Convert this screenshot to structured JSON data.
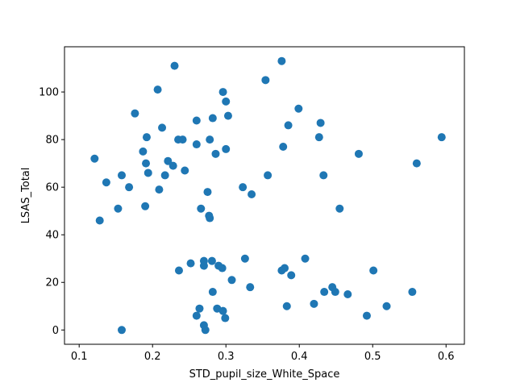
{
  "chart_data": {
    "type": "scatter",
    "title": "",
    "xlabel": "STD_pupil_size_White_Space",
    "ylabel": "LSAS_Total",
    "xlim": [
      0.08,
      0.625
    ],
    "ylim": [
      -6,
      119
    ],
    "xticks": [
      0.1,
      0.2,
      0.3,
      0.4,
      0.5,
      0.6
    ],
    "xtick_labels": [
      "0.1",
      "0.2",
      "0.3",
      "0.4",
      "0.5",
      "0.6"
    ],
    "yticks": [
      0,
      20,
      40,
      60,
      80,
      100
    ],
    "ytick_labels": [
      "0",
      "20",
      "40",
      "60",
      "80",
      "100"
    ],
    "grid": false,
    "marker_color": "#1f77b4",
    "series": [
      {
        "points": [
          [
            0.121,
            72
          ],
          [
            0.128,
            46
          ],
          [
            0.137,
            62
          ],
          [
            0.153,
            51
          ],
          [
            0.158,
            65
          ],
          [
            0.158,
            0
          ],
          [
            0.168,
            60
          ],
          [
            0.176,
            91
          ],
          [
            0.187,
            75
          ],
          [
            0.19,
            52
          ],
          [
            0.191,
            70
          ],
          [
            0.192,
            81
          ],
          [
            0.194,
            66
          ],
          [
            0.207,
            101
          ],
          [
            0.209,
            59
          ],
          [
            0.213,
            85
          ],
          [
            0.217,
            65
          ],
          [
            0.221,
            71
          ],
          [
            0.228,
            69
          ],
          [
            0.23,
            111
          ],
          [
            0.235,
            80
          ],
          [
            0.236,
            25
          ],
          [
            0.241,
            80
          ],
          [
            0.244,
            67
          ],
          [
            0.252,
            28
          ],
          [
            0.26,
            88
          ],
          [
            0.26,
            78
          ],
          [
            0.26,
            6
          ],
          [
            0.264,
            9
          ],
          [
            0.266,
            51
          ],
          [
            0.27,
            27
          ],
          [
            0.27,
            29
          ],
          [
            0.27,
            2
          ],
          [
            0.272,
            0
          ],
          [
            0.275,
            58
          ],
          [
            0.277,
            48
          ],
          [
            0.278,
            80
          ],
          [
            0.278,
            47
          ],
          [
            0.281,
            29
          ],
          [
            0.282,
            89
          ],
          [
            0.282,
            16
          ],
          [
            0.286,
            74
          ],
          [
            0.288,
            9
          ],
          [
            0.29,
            27
          ],
          [
            0.295,
            26
          ],
          [
            0.296,
            100
          ],
          [
            0.296,
            8
          ],
          [
            0.299,
            5
          ],
          [
            0.3,
            96
          ],
          [
            0.3,
            76
          ],
          [
            0.303,
            90
          ],
          [
            0.308,
            21
          ],
          [
            0.323,
            60
          ],
          [
            0.326,
            30
          ],
          [
            0.333,
            18
          ],
          [
            0.335,
            57
          ],
          [
            0.354,
            105
          ],
          [
            0.357,
            65
          ],
          [
            0.376,
            113
          ],
          [
            0.376,
            25
          ],
          [
            0.378,
            77
          ],
          [
            0.38,
            26
          ],
          [
            0.383,
            10
          ],
          [
            0.385,
            86
          ],
          [
            0.389,
            23
          ],
          [
            0.399,
            93
          ],
          [
            0.408,
            30
          ],
          [
            0.42,
            11
          ],
          [
            0.427,
            81
          ],
          [
            0.429,
            87
          ],
          [
            0.433,
            65
          ],
          [
            0.434,
            16
          ],
          [
            0.445,
            18
          ],
          [
            0.449,
            16
          ],
          [
            0.455,
            51
          ],
          [
            0.466,
            15
          ],
          [
            0.481,
            74
          ],
          [
            0.492,
            6
          ],
          [
            0.501,
            25
          ],
          [
            0.519,
            10
          ],
          [
            0.554,
            16
          ],
          [
            0.56,
            70
          ],
          [
            0.594,
            81
          ]
        ]
      }
    ]
  }
}
